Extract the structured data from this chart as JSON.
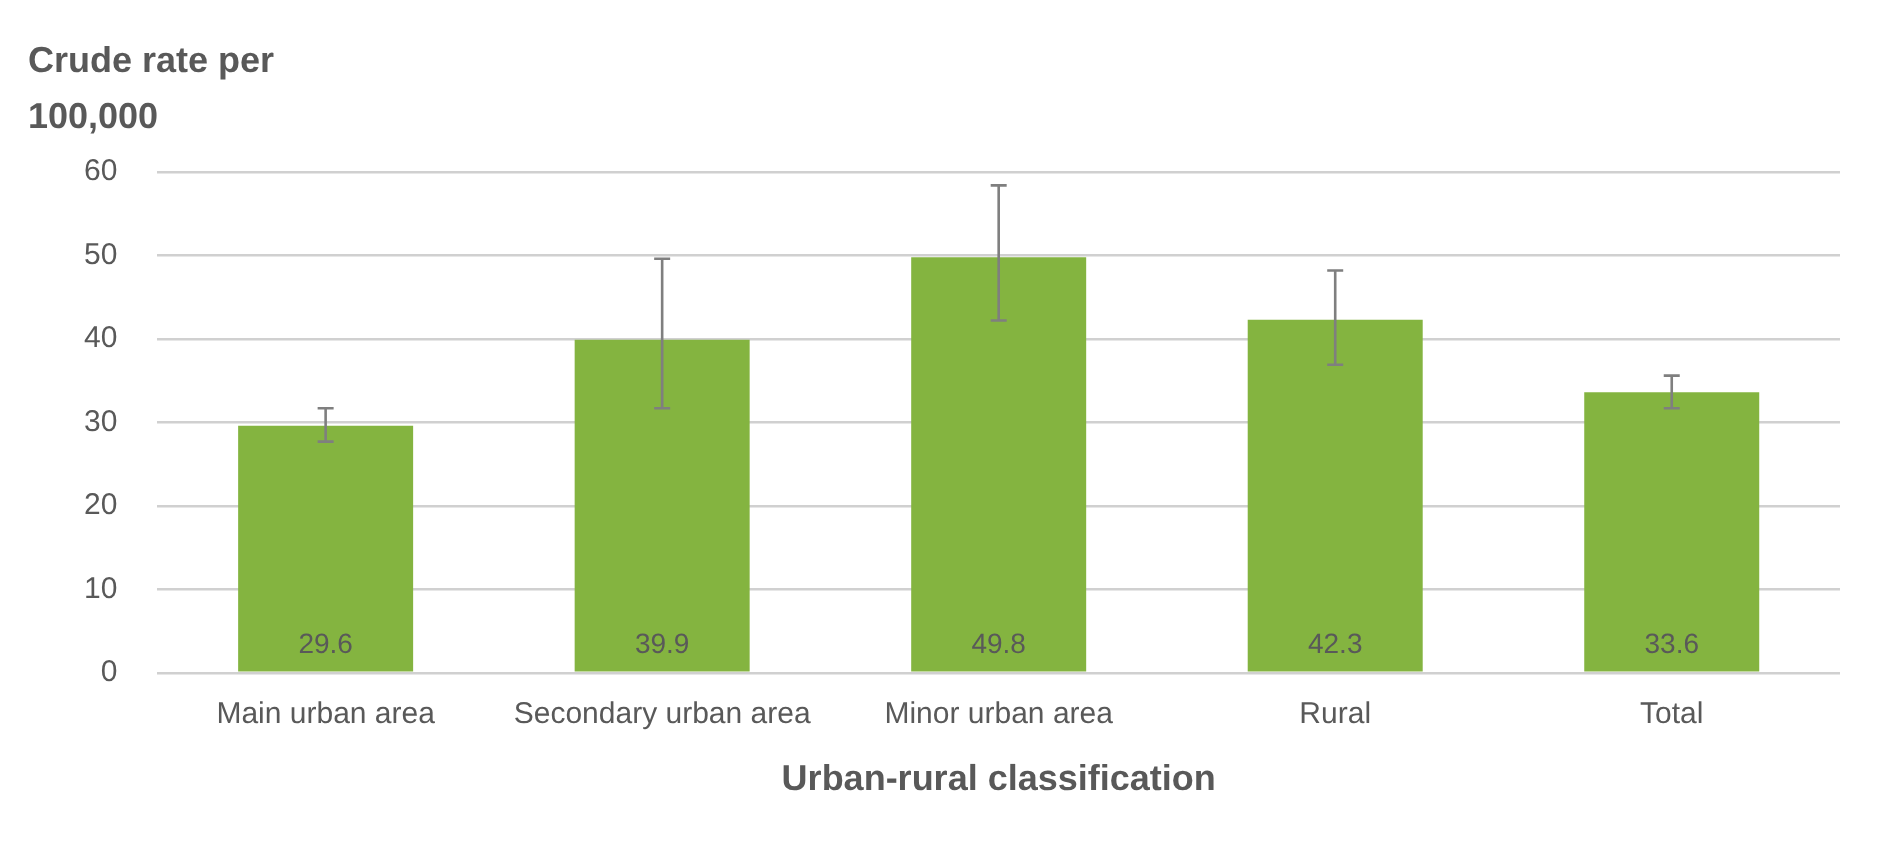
{
  "chart_data": {
    "type": "bar",
    "xlabel": "Urban-rural classification",
    "ylabel": "Crude rate per 100,000",
    "categories": [
      "Main urban area",
      "Secondary urban area",
      "Minor urban area",
      "Rural",
      "Total"
    ],
    "values": [
      29.6,
      39.9,
      49.8,
      42.3,
      33.6
    ],
    "color": "#84b440",
    "errors": [
      [
        27.7,
        31.7
      ],
      [
        31.7,
        49.6
      ],
      [
        42.2,
        58.4
      ],
      [
        36.9,
        48.2
      ],
      [
        31.7,
        35.6
      ]
    ],
    "data_labels": true,
    "ylim": [
      0,
      60
    ],
    "yticks": [
      0,
      10,
      20,
      30,
      40,
      50,
      60
    ],
    "grid": "y"
  }
}
